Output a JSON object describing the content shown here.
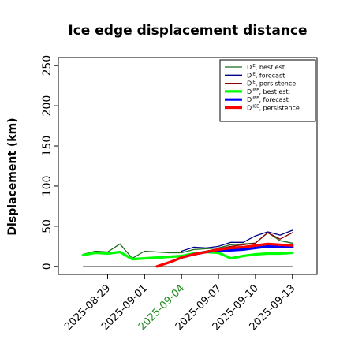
{
  "chart_data": {
    "type": "line",
    "title": "Ice edge displacement distance",
    "xlabel": "",
    "ylabel": "Displacement (km)",
    "ylim": [
      -10,
      260
    ],
    "yticks": [
      0,
      50,
      100,
      150,
      200,
      250
    ],
    "xlim": [
      "2025-08-25",
      "2025-09-15"
    ],
    "xticks": [
      {
        "label": "2025-08-29",
        "color": "#000000"
      },
      {
        "label": "2025-09-01",
        "color": "#000000"
      },
      {
        "label": "2025-09-04",
        "color": "#228B22"
      },
      {
        "label": "2025-09-07",
        "color": "#000000"
      },
      {
        "label": "2025-09-10",
        "color": "#000000"
      },
      {
        "label": "2025-09-13",
        "color": "#000000"
      }
    ],
    "grid": false,
    "legend_position": "top-right",
    "zero_line": {
      "x": [
        "2025-08-27",
        "2025-09-13"
      ],
      "y": 0,
      "color": "#555555"
    },
    "series": [
      {
        "name_main": "D",
        "name_sup": "IE",
        "name_tail": ", best est.",
        "color": "#1a6b1a",
        "width": 1.3,
        "x": [
          "2025-08-27",
          "2025-08-28",
          "2025-08-29",
          "2025-08-30",
          "2025-08-31",
          "2025-09-01",
          "2025-09-02",
          "2025-09-03",
          "2025-09-04",
          "2025-09-05",
          "2025-09-06",
          "2025-09-07",
          "2025-09-08",
          "2025-09-09",
          "2025-09-10",
          "2025-09-11",
          "2025-09-12",
          "2025-09-13"
        ],
        "y": [
          15,
          19,
          18,
          28,
          10,
          19,
          18,
          17,
          17,
          21,
          22,
          23,
          27,
          28,
          29,
          42,
          32,
          29
        ]
      },
      {
        "name_main": "D",
        "name_sup": "IE",
        "name_tail": ", forecast",
        "color": "#00008b",
        "width": 1.3,
        "x": [
          "2025-09-04",
          "2025-09-05",
          "2025-09-06",
          "2025-09-07",
          "2025-09-08",
          "2025-09-09",
          "2025-09-10",
          "2025-09-11",
          "2025-09-12",
          "2025-09-13"
        ],
        "y": [
          19,
          24,
          23,
          25,
          30,
          30,
          38,
          43,
          39,
          45
        ]
      },
      {
        "name_main": "D",
        "name_sup": "IE",
        "name_tail": ", persistence",
        "color": "#8b0000",
        "width": 1.3,
        "x": [
          "2025-09-04",
          "2025-09-05",
          "2025-09-06",
          "2025-09-07",
          "2025-09-08",
          "2025-09-09",
          "2025-09-10",
          "2025-09-11",
          "2025-09-12",
          "2025-09-13"
        ],
        "y": [
          13,
          16,
          19,
          22,
          25,
          27,
          29,
          42,
          34,
          42
        ]
      },
      {
        "name_main": "D",
        "name_sup": "IIEE",
        "name_tail": ", best est.",
        "color": "#00ff00",
        "width": 3.2,
        "x": [
          "2025-08-27",
          "2025-08-28",
          "2025-08-29",
          "2025-08-30",
          "2025-08-31",
          "2025-09-01",
          "2025-09-02",
          "2025-09-03",
          "2025-09-04",
          "2025-09-05",
          "2025-09-06",
          "2025-09-07",
          "2025-09-08",
          "2025-09-09",
          "2025-09-10",
          "2025-09-11",
          "2025-09-12",
          "2025-09-13"
        ],
        "y": [
          14,
          17,
          16,
          18,
          9,
          10,
          11,
          12,
          13,
          16,
          18,
          17,
          10,
          13,
          15,
          16,
          16,
          17
        ]
      },
      {
        "name_main": "D",
        "name_sup": "IIEE",
        "name_tail": ", forecast",
        "color": "#0000ff",
        "width": 3.2,
        "x": [
          "2025-09-04",
          "2025-09-05",
          "2025-09-06",
          "2025-09-07",
          "2025-09-08",
          "2025-09-09",
          "2025-09-10",
          "2025-09-11",
          "2025-09-12",
          "2025-09-13"
        ],
        "y": [
          11,
          15,
          18,
          20,
          20,
          21,
          23,
          25,
          24,
          24
        ]
      },
      {
        "name_main": "D",
        "name_sup": "IIEE",
        "name_tail": ", persistence",
        "color": "#ff0000",
        "width": 3.2,
        "x": [
          "2025-09-02",
          "2025-09-03",
          "2025-09-04",
          "2025-09-05",
          "2025-09-06",
          "2025-09-07",
          "2025-09-08",
          "2025-09-09",
          "2025-09-10",
          "2025-09-11",
          "2025-09-12",
          "2025-09-13"
        ],
        "y": [
          0,
          5,
          11,
          15,
          18,
          21,
          23,
          24,
          26,
          28,
          27,
          26
        ]
      }
    ]
  }
}
